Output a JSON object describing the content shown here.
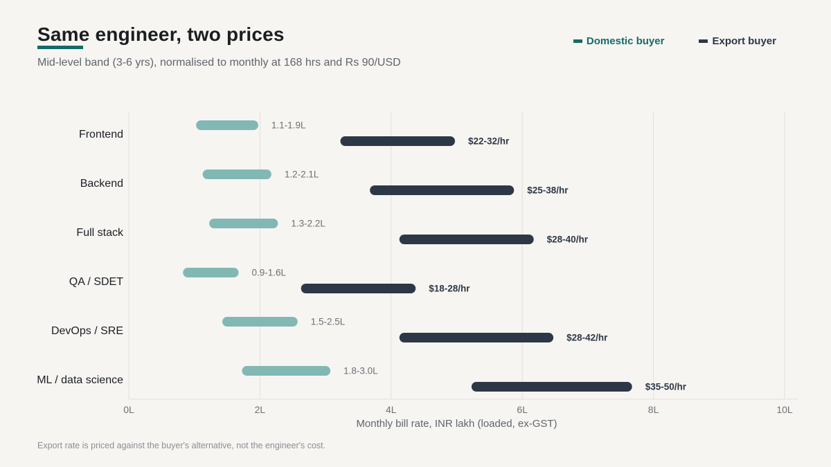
{
  "header": {
    "title": "Same engineer, two prices",
    "subtitle": "Mid-level band (3-6 yrs), normalised to monthly at 168 hrs and Rs 90/USD"
  },
  "legend": {
    "domestic": "Domestic buyer",
    "export": "Export buyer"
  },
  "footnote": "Export rate is priced against the buyer's alternative, not the engineer's cost.",
  "colors": {
    "domestic": "#82b8b3",
    "export": "#2d3846",
    "accent": "#146b68",
    "grid": "#e2e0dc"
  },
  "chart_data": {
    "type": "range-bar",
    "title": "Same engineer, two prices",
    "subtitle": "Mid-level band (3-6 yrs), normalised to monthly at 168 hrs and Rs 90/USD",
    "xlabel": "Monthly bill rate, INR lakh (loaded, ex-GST)",
    "ylabel": "",
    "xlim": [
      0,
      10
    ],
    "xticks": [
      0,
      2,
      4,
      6,
      8,
      10
    ],
    "xtick_labels": [
      "0L",
      "2L",
      "4L",
      "6L",
      "8L",
      "10L"
    ],
    "grid": true,
    "legend_position": "top-right",
    "categories": [
      "Frontend",
      "Backend",
      "Full stack",
      "QA / SDET",
      "DevOps / SRE",
      "ML / data science"
    ],
    "series": [
      {
        "name": "Domestic buyer",
        "ranges": [
          [
            1.1,
            1.9
          ],
          [
            1.2,
            2.1
          ],
          [
            1.3,
            2.2
          ],
          [
            0.9,
            1.6
          ],
          [
            1.5,
            2.5
          ],
          [
            1.8,
            3.0
          ]
        ],
        "labels": [
          "1.1-1.9L",
          "1.2-2.1L",
          "1.3-2.2L",
          "0.9-1.6L",
          "1.5-2.5L",
          "1.8-3.0L"
        ]
      },
      {
        "name": "Export buyer",
        "ranges": [
          [
            3.3,
            4.9
          ],
          [
            3.75,
            5.8
          ],
          [
            4.2,
            6.1
          ],
          [
            2.7,
            4.3
          ],
          [
            4.2,
            6.4
          ],
          [
            5.3,
            7.6
          ]
        ],
        "labels": [
          "$22-32/hr",
          "$25-38/hr",
          "$28-40/hr",
          "$18-28/hr",
          "$28-42/hr",
          "$35-50/hr"
        ]
      }
    ]
  }
}
